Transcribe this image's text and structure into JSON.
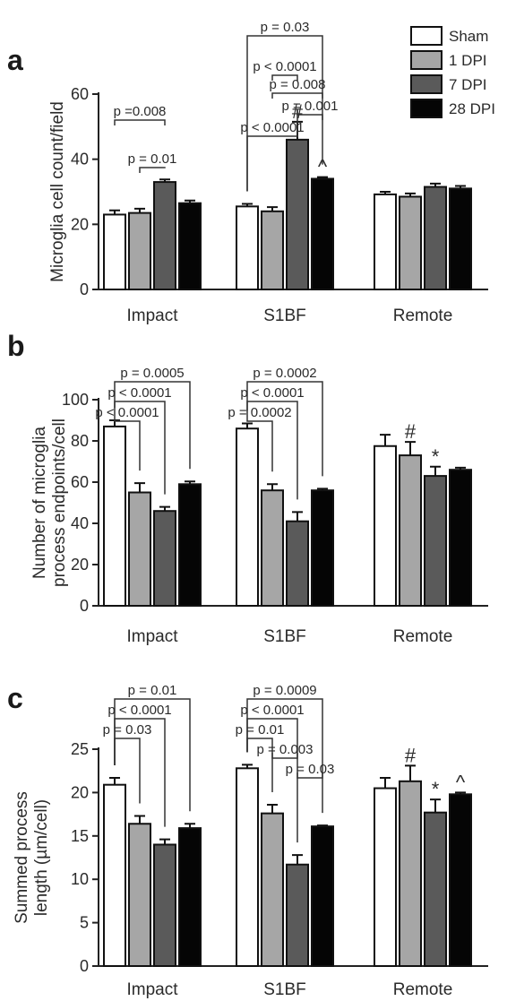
{
  "legend": [
    {
      "name": "Sham",
      "color": "#ffffff"
    },
    {
      "name": "1 DPI",
      "color": "#a6a6a6"
    },
    {
      "name": "7 DPI",
      "color": "#5a5a5a"
    },
    {
      "name": "28 DPI",
      "color": "#050505"
    }
  ],
  "chart_data": [
    {
      "panel": "a",
      "type": "bar",
      "categories": [
        "Impact",
        "S1BF",
        "Remote"
      ],
      "ylabel": "Microglia cell count/field",
      "ylim": [
        0,
        60
      ],
      "yticks": [
        0,
        20,
        40,
        60
      ],
      "series": [
        {
          "name": "Sham",
          "values": [
            23,
            25.5,
            29.2
          ],
          "errors": [
            1.3,
            0.8,
            0.8
          ]
        },
        {
          "name": "1 DPI",
          "values": [
            23.5,
            24,
            28.5
          ],
          "errors": [
            1.3,
            1.3,
            1
          ]
        },
        {
          "name": "7 DPI",
          "values": [
            33,
            46,
            31.5
          ],
          "errors": [
            0.8,
            5.5,
            1
          ]
        },
        {
          "name": "28 DPI",
          "values": [
            26.5,
            34,
            31
          ],
          "errors": [
            0.8,
            0.5,
            0.8
          ]
        }
      ],
      "markers": [
        {
          "category": 1,
          "series": 2,
          "text": "#"
        },
        {
          "category": 1,
          "series": 3,
          "text": "^"
        }
      ],
      "brackets": [
        {
          "category": 0,
          "from": 0,
          "to": 2,
          "level": 0,
          "label": "p =0.008"
        },
        {
          "category": 0,
          "from": 1,
          "to": 2,
          "level": 1,
          "label": "p = 0.01"
        },
        {
          "category": 1,
          "from": 0,
          "to": 2,
          "level": 2,
          "label": "p < 0.0001"
        },
        {
          "category": 1,
          "from": 0,
          "to": 3,
          "level": 3,
          "label": "p = 0.03"
        },
        {
          "category": 1,
          "from": 1,
          "to": 2,
          "level": 4,
          "label": "p < 0.0001"
        },
        {
          "category": 1,
          "from": 1,
          "to": 3,
          "level": 5,
          "label": "p = 0.008"
        },
        {
          "category": 1,
          "from": 2,
          "to": 3,
          "level": 6,
          "label": "p = 0.001"
        }
      ]
    },
    {
      "panel": "b",
      "type": "bar",
      "categories": [
        "Impact",
        "S1BF",
        "Remote"
      ],
      "ylabel": "Number of microglia process endpoints/cell",
      "ylim": [
        0,
        100
      ],
      "yticks": [
        0,
        20,
        40,
        60,
        80,
        100
      ],
      "series": [
        {
          "name": "Sham",
          "values": [
            87,
            86,
            77.5
          ],
          "errors": [
            3,
            2.5,
            5.5
          ]
        },
        {
          "name": "1 DPI",
          "values": [
            55,
            56,
            73
          ],
          "errors": [
            4.5,
            3,
            6.5
          ]
        },
        {
          "name": "7 DPI",
          "values": [
            46,
            41,
            63
          ],
          "errors": [
            2,
            4.5,
            4.5
          ]
        },
        {
          "name": "28 DPI",
          "values": [
            59,
            56,
            66
          ],
          "errors": [
            1.3,
            0.8,
            1
          ]
        }
      ],
      "markers": [
        {
          "category": 2,
          "series": 1,
          "text": "#"
        },
        {
          "category": 2,
          "series": 2,
          "text": "*"
        }
      ],
      "brackets": [
        {
          "category": 0,
          "from": 0,
          "to": 3,
          "level": 0,
          "label": "p = 0.0005"
        },
        {
          "category": 0,
          "from": 0,
          "to": 2,
          "level": 1,
          "label": "p < 0.0001"
        },
        {
          "category": 0,
          "from": 0,
          "to": 1,
          "level": 2,
          "label": "p < 0.0001"
        },
        {
          "category": 1,
          "from": 0,
          "to": 3,
          "level": 0,
          "label": "p = 0.0002"
        },
        {
          "category": 1,
          "from": 0,
          "to": 2,
          "level": 1,
          "label": "p < 0.0001"
        },
        {
          "category": 1,
          "from": 0,
          "to": 1,
          "level": 2,
          "label": "p = 0.0002"
        }
      ]
    },
    {
      "panel": "c",
      "type": "bar",
      "categories": [
        "Impact",
        "S1BF",
        "Remote"
      ],
      "ylabel": "Summed process length  (µm/cell)",
      "ylim": [
        0,
        25
      ],
      "yticks": [
        0,
        5,
        10,
        15,
        20,
        25
      ],
      "series": [
        {
          "name": "Sham",
          "values": [
            20.9,
            22.8,
            20.5
          ],
          "errors": [
            0.8,
            0.4,
            1.2
          ]
        },
        {
          "name": "1 DPI",
          "values": [
            16.4,
            17.6,
            21.3
          ],
          "errors": [
            0.9,
            1,
            1.8
          ]
        },
        {
          "name": "7 DPI",
          "values": [
            14,
            11.7,
            17.7
          ],
          "errors": [
            0.6,
            1.1,
            1.5
          ]
        },
        {
          "name": "28 DPI",
          "values": [
            15.9,
            16.1,
            19.8
          ],
          "errors": [
            0.5,
            0.1,
            0.2
          ]
        }
      ],
      "markers": [
        {
          "category": 2,
          "series": 1,
          "text": "#"
        },
        {
          "category": 2,
          "series": 2,
          "text": "*"
        },
        {
          "category": 2,
          "series": 3,
          "text": "^"
        }
      ],
      "brackets": [
        {
          "category": 0,
          "from": 0,
          "to": 3,
          "level": 0,
          "label": "p = 0.01"
        },
        {
          "category": 0,
          "from": 0,
          "to": 2,
          "level": 1,
          "label": "p < 0.0001"
        },
        {
          "category": 0,
          "from": 0,
          "to": 1,
          "level": 2,
          "label": "p = 0.03"
        },
        {
          "category": 1,
          "from": 0,
          "to": 3,
          "level": 0,
          "label": "p = 0.0009"
        },
        {
          "category": 1,
          "from": 0,
          "to": 2,
          "level": 1,
          "label": "p < 0.0001"
        },
        {
          "category": 1,
          "from": 0,
          "to": 1,
          "level": 2,
          "label": "p = 0.01"
        },
        {
          "category": 1,
          "from": 1,
          "to": 2,
          "level": 3,
          "label": "p = 0.003"
        },
        {
          "category": 1,
          "from": 2,
          "to": 3,
          "level": 4,
          "label": "p = 0.03"
        }
      ]
    }
  ]
}
